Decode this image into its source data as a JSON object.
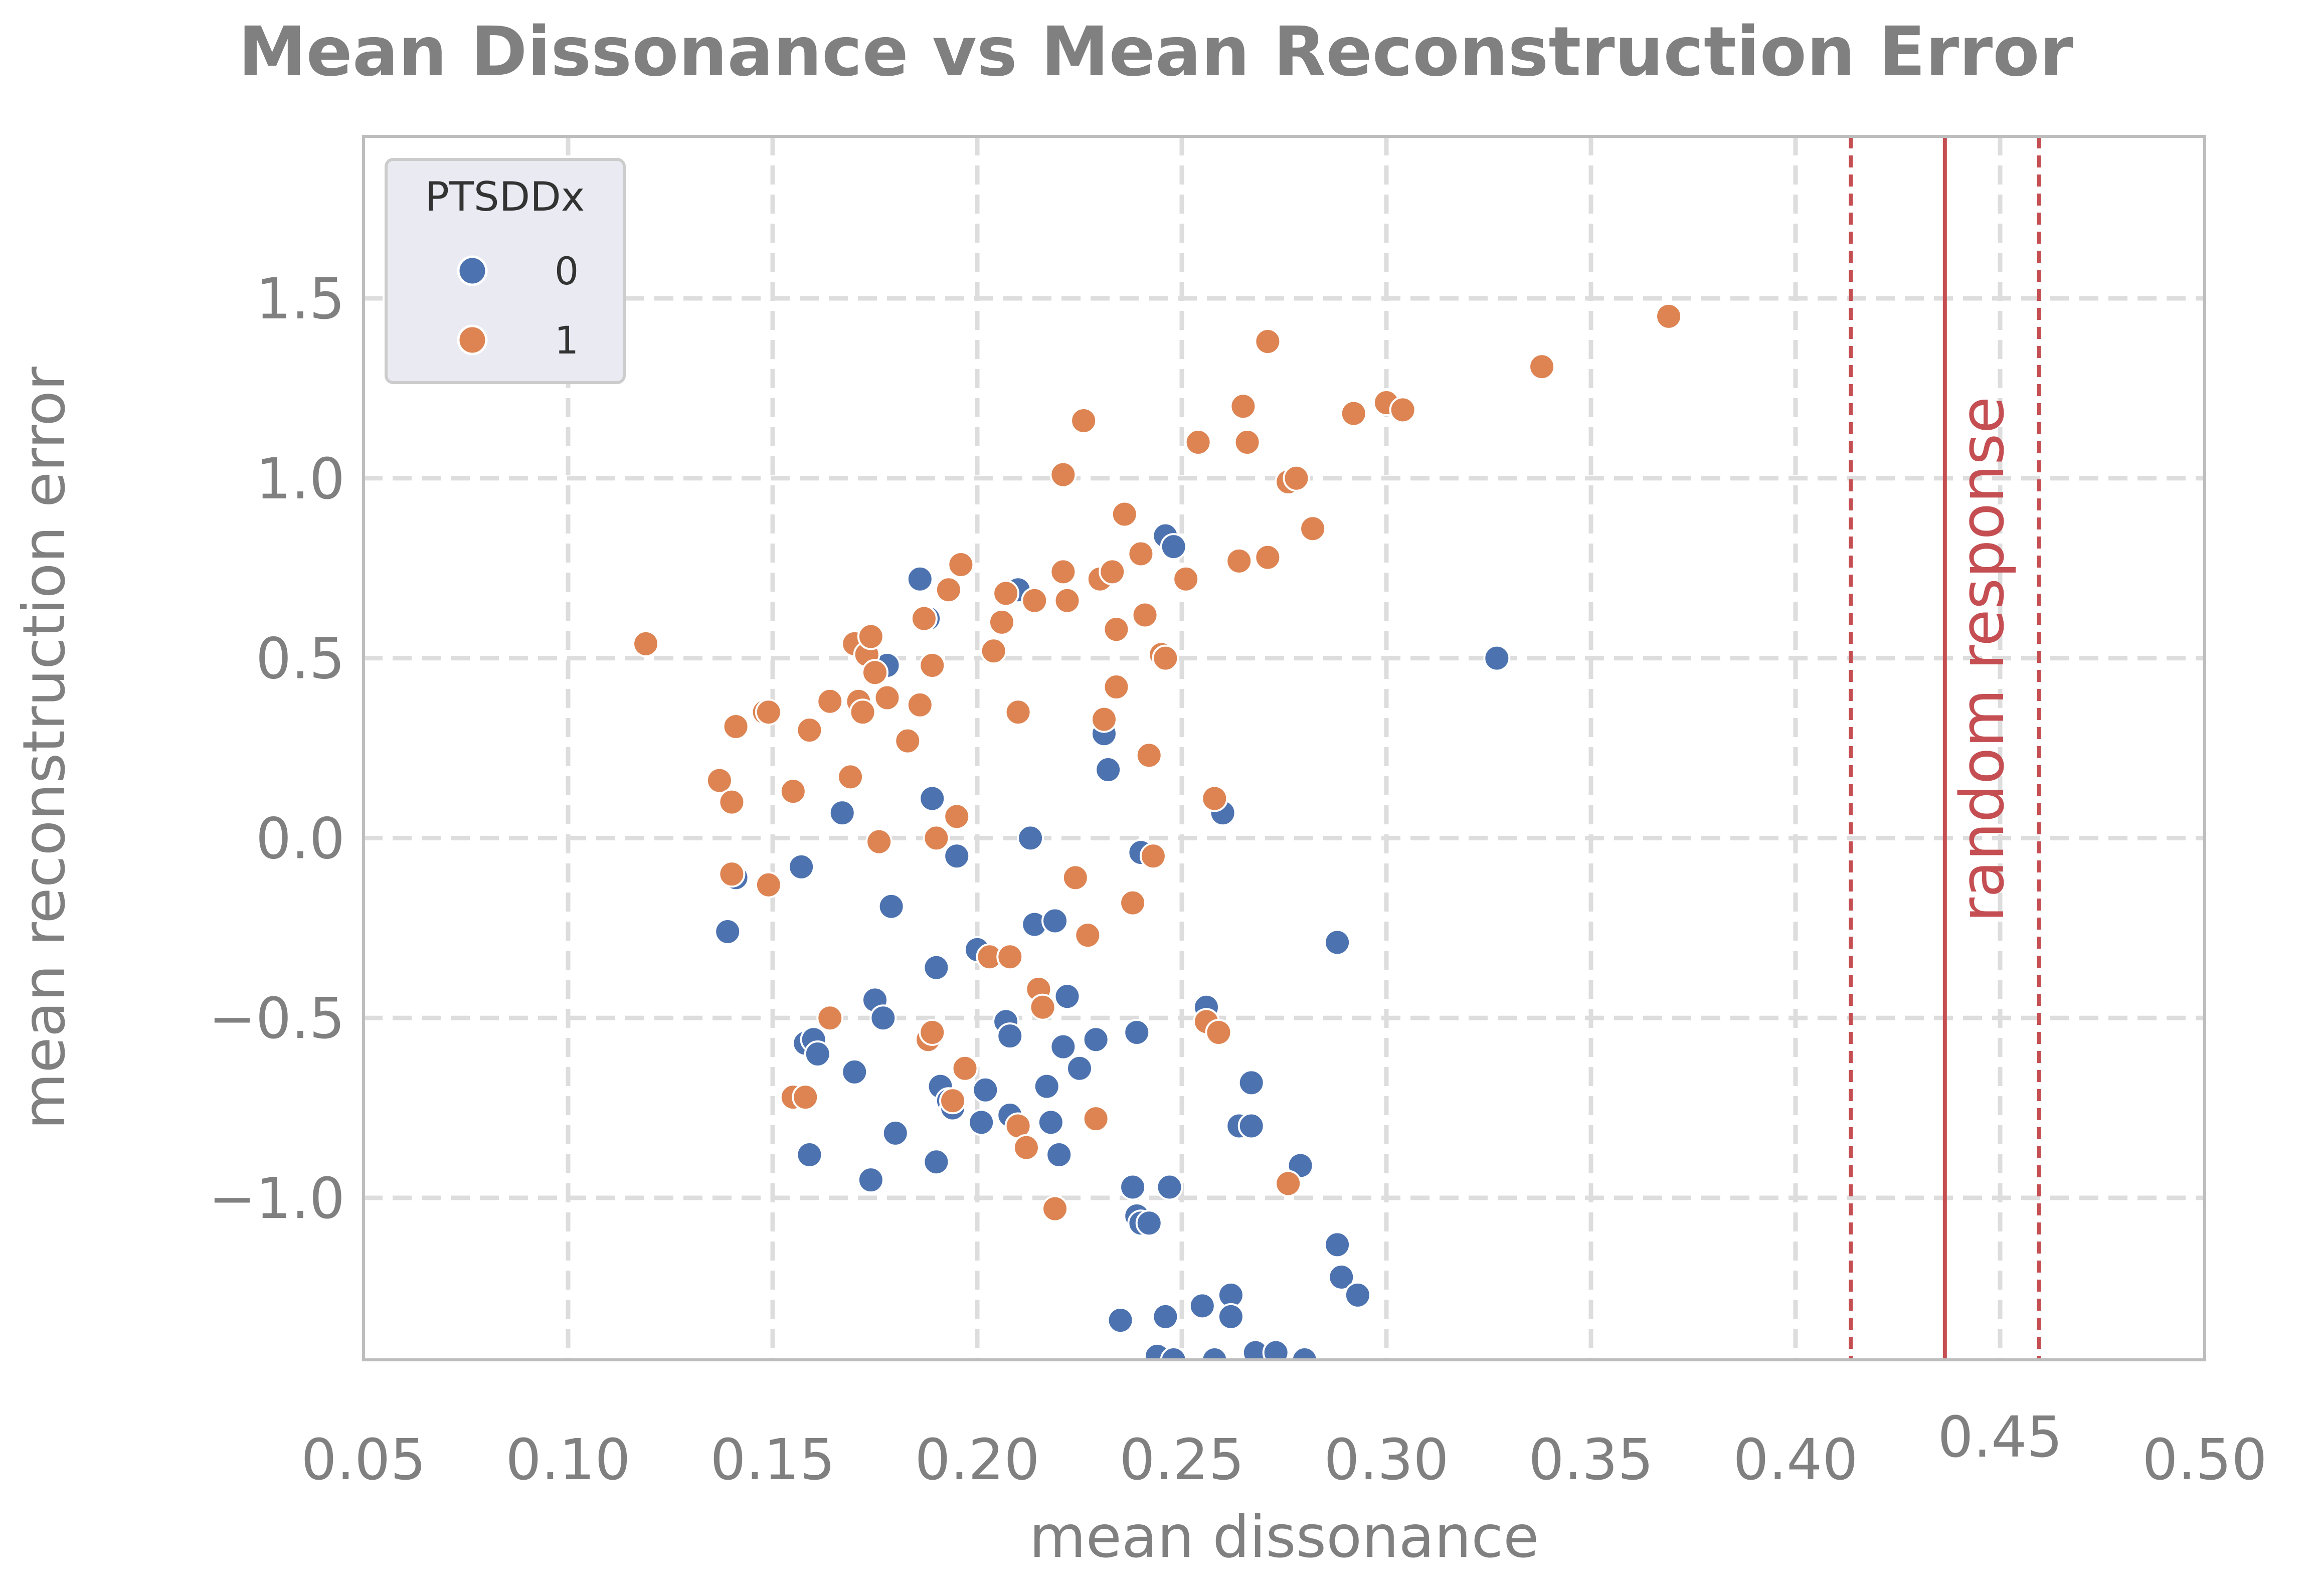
{
  "chart_data": {
    "type": "scatter",
    "title": "Mean Dissonance vs Mean Reconstruction Error",
    "xlabel": "mean dissonance",
    "ylabel": "mean reconstruction error",
    "xlim": [
      0.05,
      0.5
    ],
    "ylim": [
      -1.45,
      1.95
    ],
    "x_ticks": [
      0.05,
      0.1,
      0.15,
      0.2,
      0.25,
      0.3,
      0.35,
      0.4,
      0.45,
      0.5
    ],
    "x_tick_labels": [
      "0.05",
      "0.10",
      "0.15",
      "0.20",
      "0.25",
      "0.30",
      "0.35",
      "0.40",
      "0.45",
      "0.50"
    ],
    "y_ticks": [
      -1.0,
      -0.5,
      0.0,
      0.5,
      1.0,
      1.5
    ],
    "y_tick_labels": [
      "−1.0",
      "−0.5",
      "0.0",
      "0.5",
      "1.0",
      "1.5"
    ],
    "grid": true,
    "legend": {
      "title": "PTSDDx",
      "placement": "top-left"
    },
    "reference_lines": {
      "label": "random response",
      "color": "#c44e52",
      "solid": 0.4365,
      "dashed": [
        0.4135,
        0.4595
      ]
    },
    "series": [
      {
        "name": "0",
        "color": "#4c72b0",
        "points": [
          [
            0.139,
            -0.26
          ],
          [
            0.141,
            -0.11
          ],
          [
            0.157,
            -0.08
          ],
          [
            0.158,
            -0.57
          ],
          [
            0.159,
            -0.88
          ],
          [
            0.16,
            -0.56
          ],
          [
            0.161,
            -0.6
          ],
          [
            0.167,
            0.07
          ],
          [
            0.17,
            -0.65
          ],
          [
            0.174,
            -0.95
          ],
          [
            0.175,
            -0.45
          ],
          [
            0.177,
            -0.5
          ],
          [
            0.178,
            0.48
          ],
          [
            0.179,
            -0.19
          ],
          [
            0.18,
            -0.82
          ],
          [
            0.186,
            0.72
          ],
          [
            0.188,
            0.61
          ],
          [
            0.189,
            0.11
          ],
          [
            0.19,
            -0.36
          ],
          [
            0.19,
            -0.9
          ],
          [
            0.191,
            -0.69
          ],
          [
            0.193,
            -0.73
          ],
          [
            0.194,
            -0.75
          ],
          [
            0.195,
            -0.05
          ],
          [
            0.2,
            -0.31
          ],
          [
            0.201,
            -0.79
          ],
          [
            0.202,
            -0.7
          ],
          [
            0.207,
            -0.51
          ],
          [
            0.208,
            -0.55
          ],
          [
            0.208,
            -0.77
          ],
          [
            0.21,
            0.69
          ],
          [
            0.213,
            0.0
          ],
          [
            0.214,
            -0.24
          ],
          [
            0.217,
            -0.69
          ],
          [
            0.218,
            -0.79
          ],
          [
            0.219,
            -0.23
          ],
          [
            0.22,
            -0.88
          ],
          [
            0.221,
            -0.58
          ],
          [
            0.222,
            -0.44
          ],
          [
            0.225,
            -0.64
          ],
          [
            0.229,
            -0.56
          ],
          [
            0.231,
            0.29
          ],
          [
            0.232,
            0.19
          ],
          [
            0.235,
            -1.34
          ],
          [
            0.238,
            -0.97
          ],
          [
            0.239,
            -1.05
          ],
          [
            0.239,
            -0.54
          ],
          [
            0.24,
            -0.04
          ],
          [
            0.24,
            -1.07
          ],
          [
            0.242,
            -1.07
          ],
          [
            0.244,
            -1.44
          ],
          [
            0.246,
            0.84
          ],
          [
            0.246,
            -1.33
          ],
          [
            0.247,
            -0.97
          ],
          [
            0.248,
            0.81
          ],
          [
            0.248,
            -1.45
          ],
          [
            0.255,
            -1.3
          ],
          [
            0.256,
            -0.47
          ],
          [
            0.258,
            -1.45
          ],
          [
            0.26,
            0.07
          ],
          [
            0.262,
            -1.27
          ],
          [
            0.262,
            -1.33
          ],
          [
            0.264,
            -0.8
          ],
          [
            0.267,
            -0.68
          ],
          [
            0.267,
            -0.8
          ],
          [
            0.268,
            -1.43
          ],
          [
            0.273,
            -1.43
          ],
          [
            0.279,
            -0.91
          ],
          [
            0.28,
            -1.45
          ],
          [
            0.288,
            -0.29
          ],
          [
            0.288,
            -1.13
          ],
          [
            0.289,
            -1.22
          ],
          [
            0.293,
            -1.27
          ],
          [
            0.327,
            0.5
          ]
        ]
      },
      {
        "name": "1",
        "color": "#dd8452",
        "points": [
          [
            0.119,
            0.54
          ],
          [
            0.137,
            0.16
          ],
          [
            0.14,
            0.1
          ],
          [
            0.14,
            -0.1
          ],
          [
            0.141,
            0.31
          ],
          [
            0.148,
            0.35
          ],
          [
            0.149,
            0.35
          ],
          [
            0.149,
            -0.13
          ],
          [
            0.155,
            0.13
          ],
          [
            0.155,
            -0.72
          ],
          [
            0.158,
            -0.72
          ],
          [
            0.159,
            0.3
          ],
          [
            0.164,
            0.38
          ],
          [
            0.164,
            -0.5
          ],
          [
            0.169,
            0.17
          ],
          [
            0.17,
            0.54
          ],
          [
            0.171,
            0.38
          ],
          [
            0.172,
            0.35
          ],
          [
            0.173,
            0.51
          ],
          [
            0.174,
            0.56
          ],
          [
            0.175,
            0.46
          ],
          [
            0.176,
            -0.01
          ],
          [
            0.178,
            0.39
          ],
          [
            0.183,
            0.27
          ],
          [
            0.186,
            0.37
          ],
          [
            0.187,
            0.61
          ],
          [
            0.188,
            -0.56
          ],
          [
            0.189,
            0.48
          ],
          [
            0.189,
            -0.54
          ],
          [
            0.19,
            0.0
          ],
          [
            0.193,
            0.69
          ],
          [
            0.194,
            -0.73
          ],
          [
            0.195,
            0.06
          ],
          [
            0.196,
            0.76
          ],
          [
            0.197,
            -0.64
          ],
          [
            0.203,
            -0.33
          ],
          [
            0.204,
            0.52
          ],
          [
            0.206,
            0.6
          ],
          [
            0.207,
            0.68
          ],
          [
            0.208,
            -0.33
          ],
          [
            0.21,
            -0.8
          ],
          [
            0.21,
            0.35
          ],
          [
            0.212,
            -0.86
          ],
          [
            0.214,
            0.66
          ],
          [
            0.215,
            -0.42
          ],
          [
            0.216,
            -0.47
          ],
          [
            0.219,
            -1.03
          ],
          [
            0.221,
            1.01
          ],
          [
            0.221,
            0.74
          ],
          [
            0.222,
            0.66
          ],
          [
            0.224,
            -0.11
          ],
          [
            0.226,
            1.16
          ],
          [
            0.227,
            -0.27
          ],
          [
            0.229,
            -0.78
          ],
          [
            0.23,
            0.72
          ],
          [
            0.231,
            0.33
          ],
          [
            0.233,
            0.74
          ],
          [
            0.234,
            0.42
          ],
          [
            0.234,
            0.58
          ],
          [
            0.236,
            0.9
          ],
          [
            0.238,
            -0.18
          ],
          [
            0.24,
            0.79
          ],
          [
            0.241,
            0.62
          ],
          [
            0.242,
            0.23
          ],
          [
            0.243,
            -0.05
          ],
          [
            0.245,
            0.51
          ],
          [
            0.246,
            0.5
          ],
          [
            0.251,
            0.72
          ],
          [
            0.254,
            1.1
          ],
          [
            0.256,
            -0.51
          ],
          [
            0.258,
            0.11
          ],
          [
            0.259,
            -0.54
          ],
          [
            0.264,
            0.77
          ],
          [
            0.265,
            1.2
          ],
          [
            0.266,
            1.1
          ],
          [
            0.271,
            1.38
          ],
          [
            0.271,
            0.78
          ],
          [
            0.276,
            0.99
          ],
          [
            0.276,
            -0.96
          ],
          [
            0.278,
            1.0
          ],
          [
            0.282,
            0.86
          ],
          [
            0.292,
            1.18
          ],
          [
            0.3,
            1.21
          ],
          [
            0.304,
            1.19
          ],
          [
            0.338,
            1.31
          ],
          [
            0.369,
            1.45
          ]
        ]
      }
    ]
  }
}
